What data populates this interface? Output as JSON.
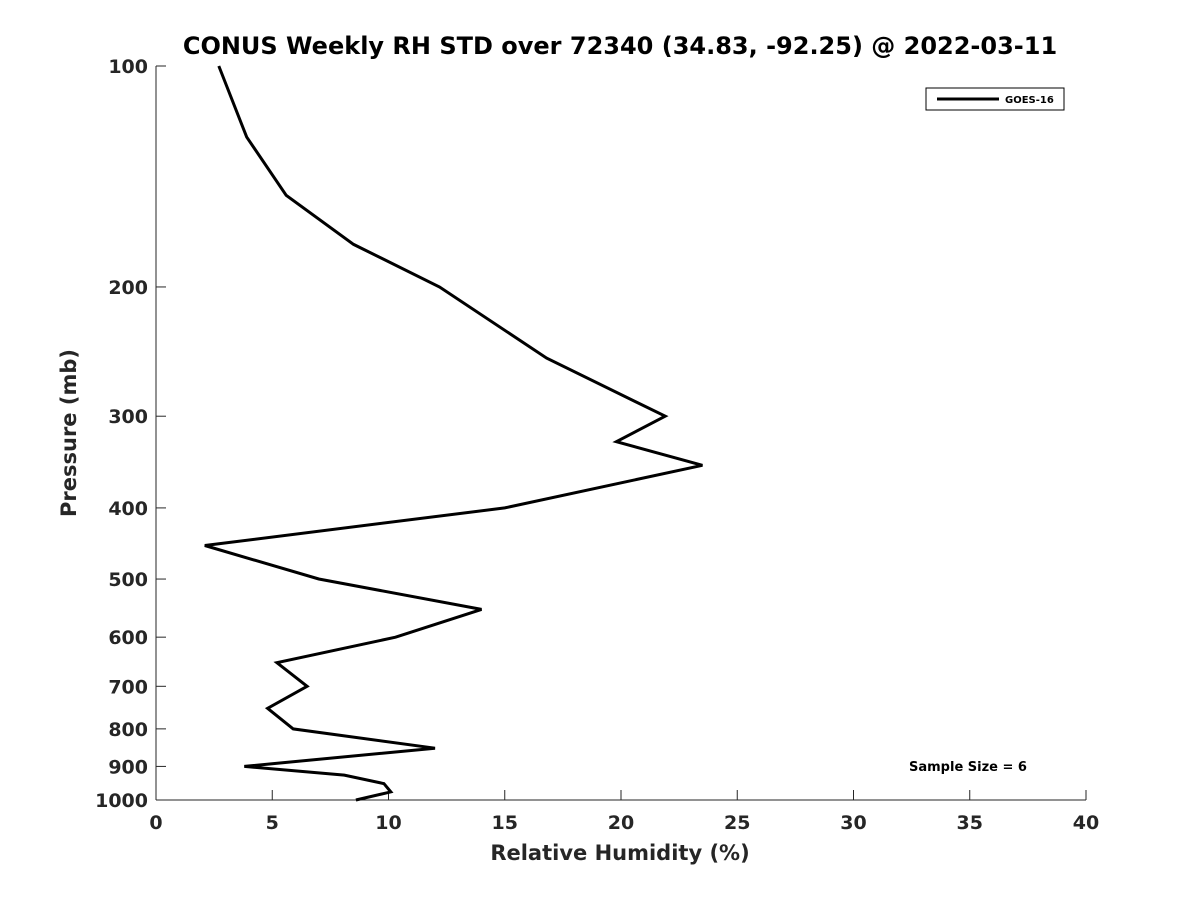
{
  "chart_data": {
    "type": "line",
    "title": "CONUS Weekly RH STD over 72340 (34.83, -92.25) @ 2022-03-11",
    "xlabel": "Relative Humidity (%)",
    "ylabel": "Pressure (mb)",
    "xlim": [
      0,
      40
    ],
    "ylim": [
      100,
      1000
    ],
    "y_scale": "log",
    "y_reversed": true,
    "grid": false,
    "legend_position": "top-right",
    "x_ticks": [
      0,
      5,
      10,
      15,
      20,
      25,
      30,
      35,
      40
    ],
    "y_ticks": [
      100,
      200,
      300,
      400,
      500,
      600,
      700,
      800,
      900,
      1000
    ],
    "series": [
      {
        "name": "GOES-16",
        "color": "#000000",
        "points": [
          {
            "x": 2.7,
            "p": 100
          },
          {
            "x": 3.9,
            "p": 125
          },
          {
            "x": 5.6,
            "p": 150
          },
          {
            "x": 8.5,
            "p": 175
          },
          {
            "x": 12.2,
            "p": 200
          },
          {
            "x": 16.8,
            "p": 250
          },
          {
            "x": 21.9,
            "p": 300
          },
          {
            "x": 19.8,
            "p": 325
          },
          {
            "x": 23.5,
            "p": 350
          },
          {
            "x": 15.0,
            "p": 400
          },
          {
            "x": 2.1,
            "p": 450
          },
          {
            "x": 7.0,
            "p": 500
          },
          {
            "x": 14.0,
            "p": 550
          },
          {
            "x": 10.3,
            "p": 600
          },
          {
            "x": 5.2,
            "p": 650
          },
          {
            "x": 6.5,
            "p": 700
          },
          {
            "x": 4.8,
            "p": 750
          },
          {
            "x": 5.9,
            "p": 800
          },
          {
            "x": 12.0,
            "p": 850
          },
          {
            "x": 3.8,
            "p": 900
          },
          {
            "x": 8.1,
            "p": 925
          },
          {
            "x": 9.8,
            "p": 950
          },
          {
            "x": 10.1,
            "p": 975
          },
          {
            "x": 8.6,
            "p": 1000
          }
        ]
      }
    ],
    "annotation": "Sample Size = 6"
  }
}
